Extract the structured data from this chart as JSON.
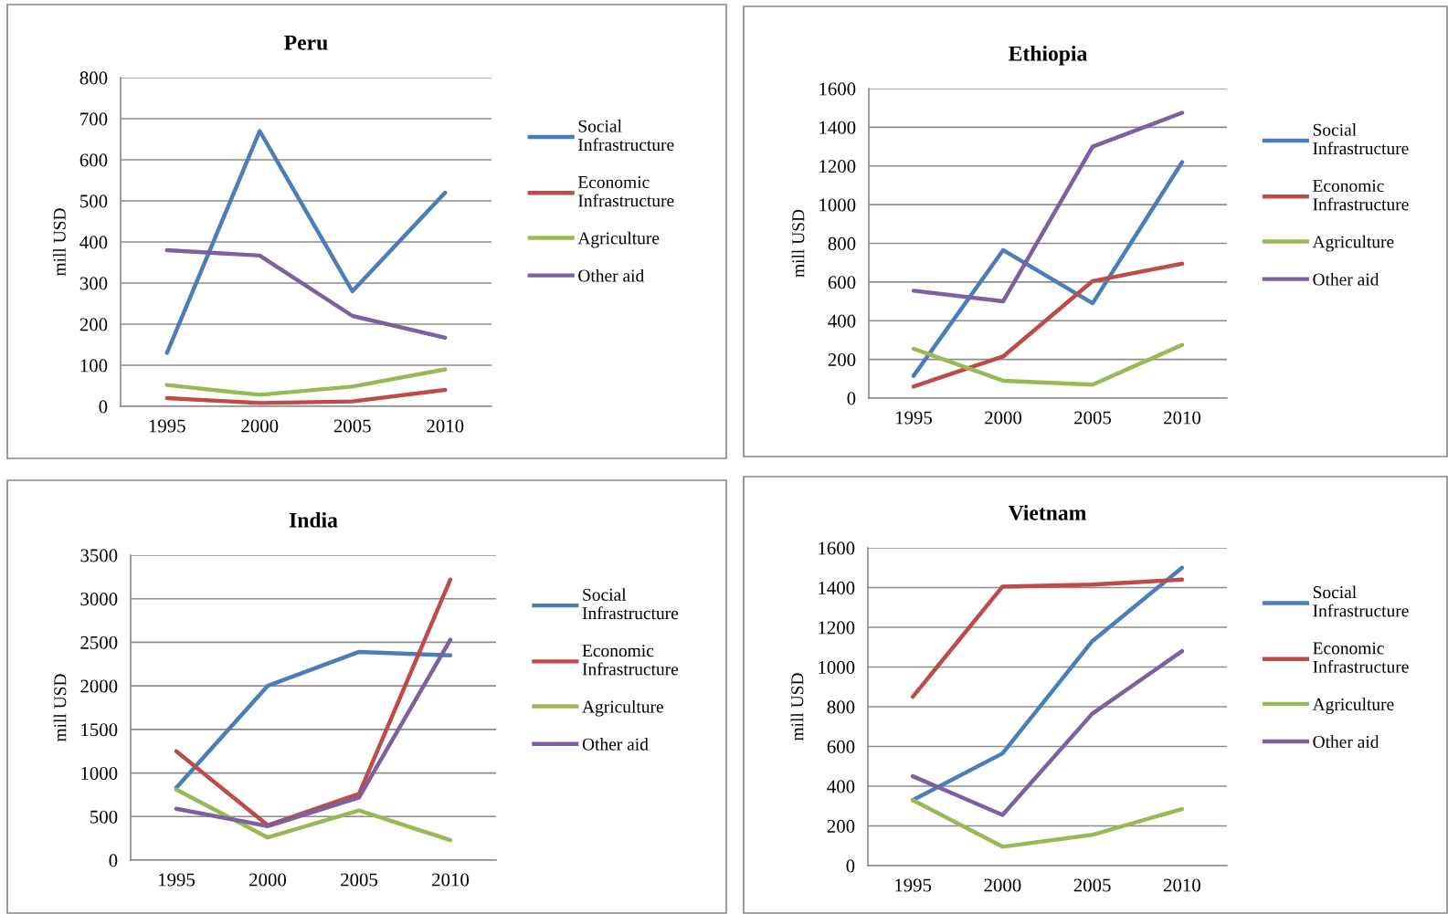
{
  "chart_data": [
    {
      "type": "line",
      "title": "Peru",
      "ylabel": "mill USD",
      "categories": [
        "1995",
        "2000",
        "2005",
        "2010"
      ],
      "ylim": [
        0,
        800
      ],
      "yticks": [
        0,
        100,
        200,
        300,
        400,
        500,
        600,
        700,
        800
      ],
      "grid": "y",
      "legend": "right",
      "series": [
        {
          "name": "Social Infrastructure",
          "color": "#4a7ebb",
          "values": [
            130,
            670,
            280,
            520
          ]
        },
        {
          "name": "Economic Infrastructure",
          "color": "#be4b48",
          "values": [
            20,
            8,
            12,
            40
          ]
        },
        {
          "name": "Agriculture",
          "color": "#98b954",
          "values": [
            52,
            28,
            48,
            90
          ]
        },
        {
          "name": "Other aid",
          "color": "#7d60a0",
          "values": [
            380,
            367,
            220,
            167
          ]
        }
      ]
    },
    {
      "type": "line",
      "title": "Ethiopia",
      "ylabel": "mill USD",
      "categories": [
        "1995",
        "2000",
        "2005",
        "2010"
      ],
      "ylim": [
        0,
        1600
      ],
      "yticks": [
        0,
        200,
        400,
        600,
        800,
        1000,
        1200,
        1400,
        1600
      ],
      "grid": "y",
      "legend": "right",
      "series": [
        {
          "name": "Social Infrastructure",
          "color": "#4a7ebb",
          "values": [
            115,
            765,
            490,
            1220
          ]
        },
        {
          "name": "Economic Infrastructure",
          "color": "#be4b48",
          "values": [
            60,
            215,
            605,
            695
          ]
        },
        {
          "name": "Agriculture",
          "color": "#98b954",
          "values": [
            255,
            90,
            70,
            275
          ]
        },
        {
          "name": "Other aid",
          "color": "#7d60a0",
          "values": [
            555,
            500,
            1300,
            1475
          ]
        }
      ]
    },
    {
      "type": "line",
      "title": "India",
      "ylabel": "mill USD",
      "categories": [
        "1995",
        "2000",
        "2005",
        "2010"
      ],
      "ylim": [
        0,
        3500
      ],
      "yticks": [
        0,
        500,
        1000,
        1500,
        2000,
        2500,
        3000,
        3500
      ],
      "grid": "y",
      "legend": "right",
      "series": [
        {
          "name": "Social Infrastructure",
          "color": "#4a7ebb",
          "values": [
            830,
            2000,
            2390,
            2350
          ]
        },
        {
          "name": "Economic Infrastructure",
          "color": "#be4b48",
          "values": [
            1250,
            400,
            760,
            3220
          ]
        },
        {
          "name": "Agriculture",
          "color": "#98b954",
          "values": [
            810,
            260,
            570,
            230
          ]
        },
        {
          "name": "Other aid",
          "color": "#7d60a0",
          "values": [
            590,
            390,
            720,
            2530
          ]
        }
      ]
    },
    {
      "type": "line",
      "title": "Vietnam",
      "ylabel": "mill USD",
      "categories": [
        "1995",
        "2000",
        "2005",
        "2010"
      ],
      "ylim": [
        0,
        1600
      ],
      "yticks": [
        0,
        200,
        400,
        600,
        800,
        1000,
        1200,
        1400,
        1600
      ],
      "grid": "y",
      "legend": "right",
      "series": [
        {
          "name": "Social Infrastructure",
          "color": "#4a7ebb",
          "values": [
            330,
            565,
            1130,
            1500
          ]
        },
        {
          "name": "Economic Infrastructure",
          "color": "#be4b48",
          "values": [
            850,
            1405,
            1415,
            1440
          ]
        },
        {
          "name": "Agriculture",
          "color": "#98b954",
          "values": [
            330,
            95,
            155,
            285
          ]
        },
        {
          "name": "Other aid",
          "color": "#7d60a0",
          "values": [
            450,
            255,
            765,
            1080
          ]
        }
      ]
    }
  ]
}
